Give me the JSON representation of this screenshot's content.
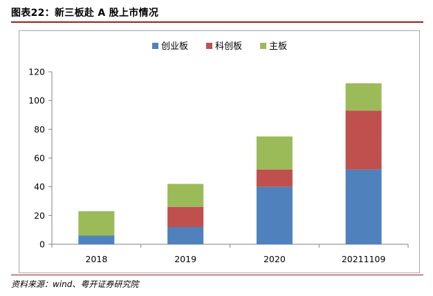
{
  "figure_title": "图表22：新三板赴 A 股上市情况",
  "source_note": "资料来源：wind、粤开证券研究院",
  "chart_data": {
    "type": "bar",
    "stacked": true,
    "title": "",
    "xlabel": "",
    "ylabel": "",
    "categories": [
      "2018",
      "2019",
      "2020",
      "20211109"
    ],
    "series": [
      {
        "name": "创业板",
        "color": "#4f81bd",
        "values": [
          6,
          12,
          40,
          52
        ]
      },
      {
        "name": "科创板",
        "color": "#c0504d",
        "values": [
          0,
          14,
          12,
          41
        ]
      },
      {
        "name": "主板",
        "color": "#9bbb59",
        "values": [
          17,
          16,
          23,
          19
        ]
      }
    ],
    "ylim": [
      0,
      120
    ],
    "yticks": [
      0,
      20,
      40,
      60,
      80,
      100,
      120
    ],
    "grid": false,
    "legend_position": "top-center"
  }
}
